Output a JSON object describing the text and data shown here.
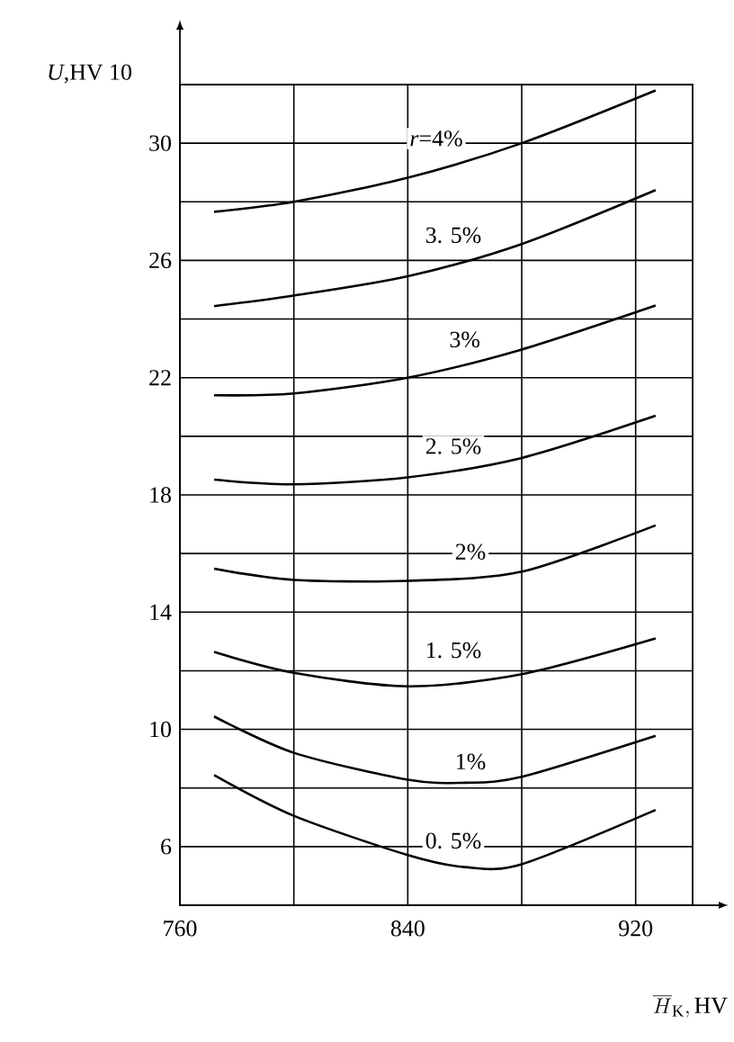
{
  "chart_data": {
    "type": "line",
    "xlabel": "\\overline{H}_{\\mathrm{K}},\\mathrm{HV}",
    "ylabel": "*U*,HV 10",
    "xlim": [
      760,
      940
    ],
    "ylim": [
      4,
      32
    ],
    "xticks": [
      760,
      {
        "value": 800,
        "label": null
      },
      840,
      {
        "value": 880,
        "label": null
      },
      920
    ],
    "yticks": [
      6,
      {
        "value": 8,
        "label": null
      },
      10,
      {
        "value": 12,
        "label": null
      },
      14,
      {
        "value": 16,
        "label": null
      },
      18,
      {
        "value": 20,
        "label": null
      },
      22,
      {
        "value": 24,
        "label": null
      },
      26,
      {
        "value": 28,
        "label": null
      },
      30,
      {
        "value": 32,
        "label": null
      }
    ],
    "grid": true,
    "series": [
      {
        "color": "#000000",
        "x": [
          772,
          800,
          840,
          880,
          927
        ],
        "values": [
          27.66,
          28.0,
          28.82,
          30.0,
          31.8
        ]
      },
      {
        "color": "#000000",
        "x": [
          772,
          800,
          840,
          880,
          927
        ],
        "values": [
          24.44,
          24.8,
          25.46,
          26.56,
          28.4
        ]
      },
      {
        "color": "#000000",
        "x": [
          772,
          800,
          840,
          880,
          927
        ],
        "values": [
          21.4,
          21.46,
          22.0,
          22.96,
          24.46
        ]
      },
      {
        "color": "#000000",
        "x": [
          772,
          800,
          840,
          880,
          927
        ],
        "values": [
          18.52,
          18.36,
          18.6,
          19.26,
          20.7
        ]
      },
      {
        "color": "#000000",
        "x": [
          772,
          800,
          840,
          880,
          927
        ],
        "values": [
          15.48,
          15.1,
          15.07,
          15.38,
          16.96
        ]
      },
      {
        "color": "#000000",
        "x": [
          772,
          800,
          840,
          880,
          927
        ],
        "values": [
          12.64,
          11.93,
          11.47,
          11.88,
          13.1
        ]
      },
      {
        "color": "#000000",
        "x": [
          772,
          800,
          840,
          860,
          880,
          927
        ],
        "values": [
          10.44,
          9.2,
          8.28,
          8.18,
          8.38,
          9.78
        ]
      },
      {
        "color": "#000000",
        "x": [
          772,
          800,
          840,
          860,
          880,
          927
        ],
        "values": [
          8.44,
          7.05,
          5.71,
          5.3,
          5.4,
          7.25
        ]
      }
    ],
    "annotations": [
      {
        "text": "*r*=4%",
        "x": 850,
        "y": 30.16
      },
      {
        "text": "3. 5%",
        "x": 856,
        "y": 26.86
      },
      {
        "text": "3%",
        "x": 860,
        "y": 23.3
      },
      {
        "text": "2. 5%",
        "x": 856,
        "y": 19.66
      },
      {
        "text": "2%",
        "x": 862,
        "y": 16.06
      },
      {
        "text": "1. 5%",
        "x": 856,
        "y": 12.7
      },
      {
        "text": "1%",
        "x": 862,
        "y": 8.9
      },
      {
        "text": "0. 5%",
        "x": 856,
        "y": 6.2
      }
    ]
  }
}
